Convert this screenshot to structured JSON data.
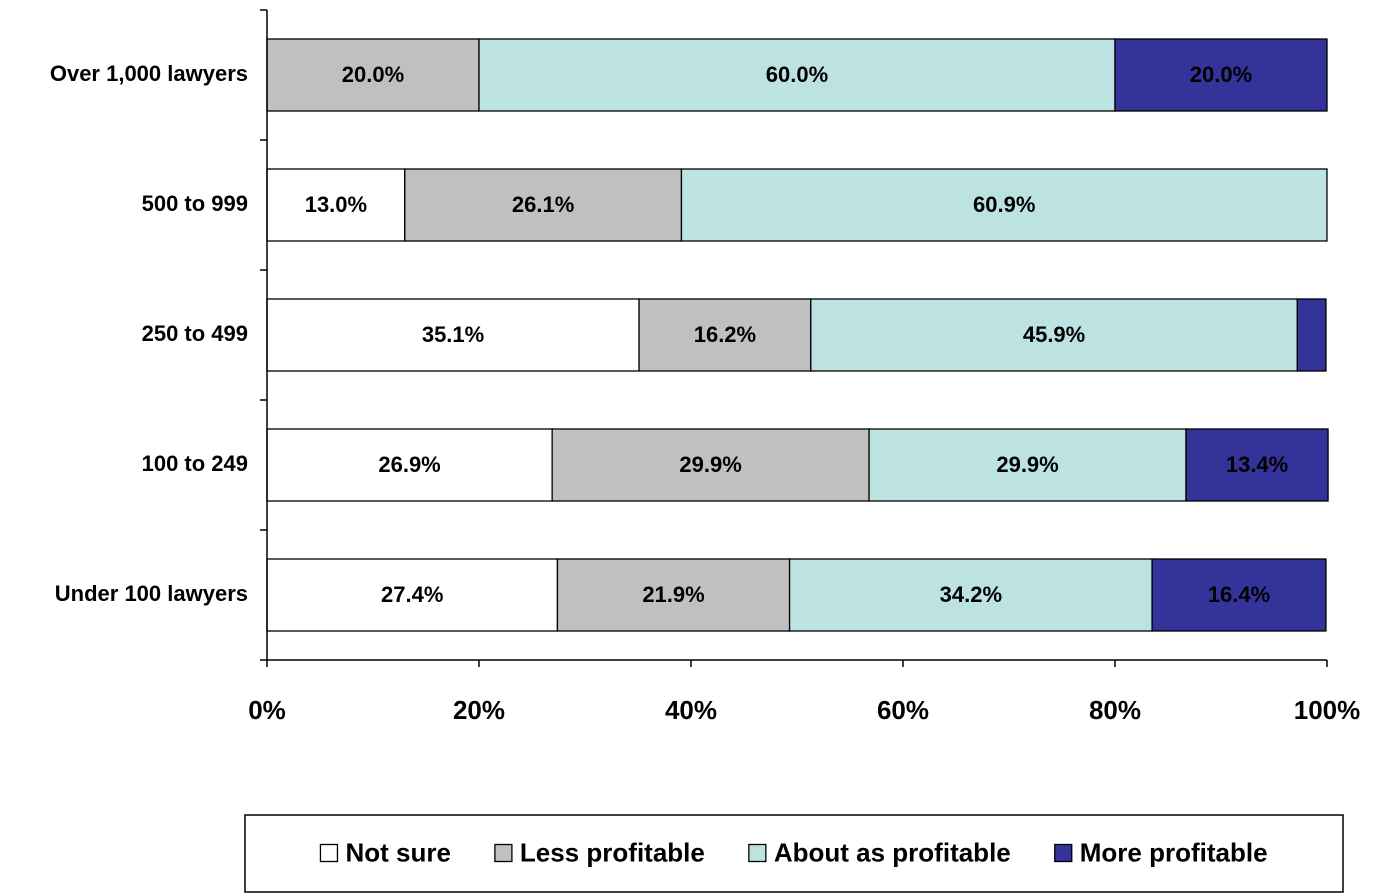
{
  "chart_data": {
    "type": "stacked_barh",
    "categories": [
      "Over 1,000 lawyers",
      "500 to 999",
      "250 to 499",
      "100 to 249",
      "Under 100 lawyers"
    ],
    "series": [
      {
        "name": "Not sure",
        "color": "#ffffff",
        "values": [
          0,
          13.0,
          35.1,
          26.9,
          27.4
        ],
        "value_labels": [
          null,
          "13.0%",
          "35.1%",
          "26.9%",
          "27.4%"
        ]
      },
      {
        "name": "Less profitable",
        "color": "#c0c0c0",
        "values": [
          20.0,
          26.1,
          16.2,
          29.9,
          21.9
        ],
        "value_labels": [
          "20.0%",
          "26.1%",
          "16.2%",
          "29.9%",
          "21.9%"
        ]
      },
      {
        "name": "About as profitable",
        "color": "#bde2e2",
        "values": [
          60.0,
          60.9,
          45.9,
          29.9,
          34.2
        ],
        "value_labels": [
          "60.0%",
          "60.9%",
          "45.9%",
          "29.9%",
          "34.2%"
        ]
      },
      {
        "name": "More profitable",
        "color": "#333399",
        "values": [
          20.0,
          0,
          2.7,
          13.4,
          16.4
        ],
        "value_labels": [
          "20.0%",
          null,
          null,
          "13.4%",
          "16.4%"
        ]
      }
    ],
    "xlim": [
      0,
      100
    ],
    "xticks": [
      {
        "value": 0,
        "label": "0%"
      },
      {
        "value": 20,
        "label": "20%"
      },
      {
        "value": 40,
        "label": "40%"
      },
      {
        "value": 60,
        "label": "60%"
      },
      {
        "value": 80,
        "label": "80%"
      },
      {
        "value": 100,
        "label": "100%"
      }
    ],
    "legend": "bottom",
    "grid": false
  }
}
